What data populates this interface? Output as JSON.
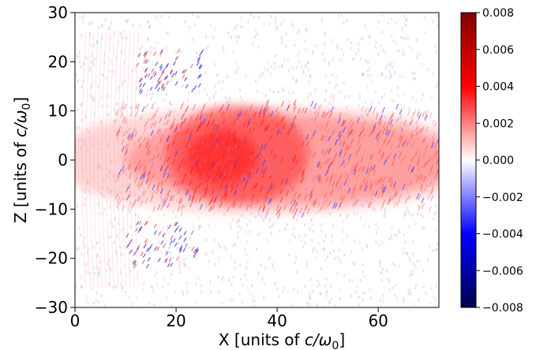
{
  "chart_data": {
    "type": "heatmap",
    "title": "",
    "xlabel_prefix": "X [units of ",
    "ylabel_prefix": "Z [units of ",
    "label_unit": "c/ω",
    "label_unit_sub": "0",
    "label_suffix": "]",
    "xlim": [
      0,
      72
    ],
    "ylim": [
      -30,
      30
    ],
    "x_ticks": [
      0,
      20,
      40,
      60
    ],
    "x_tick_labels": [
      "0",
      "20",
      "40",
      "60"
    ],
    "y_ticks": [
      -30,
      -20,
      -10,
      0,
      10,
      20,
      30
    ],
    "y_tick_labels": [
      "−30",
      "−20",
      "−10",
      "0",
      "10",
      "20",
      "30"
    ],
    "colorbar": {
      "colormap": "seismic",
      "range": [
        -0.008,
        0.008
      ],
      "ticks": [
        0.008,
        0.006,
        0.004,
        0.002,
        0.0,
        -0.002,
        -0.004,
        -0.006,
        -0.008
      ],
      "tick_labels": [
        "0.008",
        "0.006",
        "0.004",
        "0.002",
        "0.000",
        "−0.002",
        "−0.004",
        "−0.006",
        "−0.008"
      ]
    },
    "grid": false,
    "features": [
      {
        "description": "positive channel",
        "x_range": [
          0,
          72
        ],
        "z_range": [
          -10,
          10
        ]
      },
      {
        "description": "strongest positive region",
        "x_range": [
          18,
          45
        ],
        "z_range": [
          -8,
          10
        ]
      },
      {
        "description": "negative filaments",
        "x_range": [
          10,
          25
        ],
        "z_range": [
          13,
          22
        ]
      },
      {
        "description": "negative filaments",
        "x_range": [
          10,
          25
        ],
        "z_range": [
          -22,
          -13
        ]
      }
    ]
  }
}
